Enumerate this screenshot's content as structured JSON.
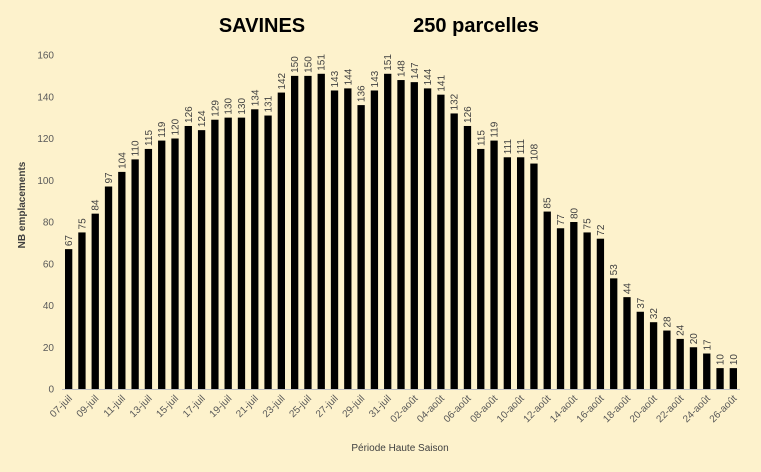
{
  "chart_data": {
    "type": "bar",
    "title_left": "SAVINES",
    "title_right": "250 parcelles",
    "xlabel": "Période Haute Saison",
    "ylabel": "NB emplacements",
    "ylim": [
      0,
      160
    ],
    "yticks": [
      0,
      20,
      40,
      60,
      80,
      100,
      120,
      140,
      160
    ],
    "grid": false,
    "bar_color": "#000000",
    "categories": [
      "07-juil",
      "08-juil",
      "09-juil",
      "10-juil",
      "11-juil",
      "12-juil",
      "13-juil",
      "14-juil",
      "15-juil",
      "16-juil",
      "17-juil",
      "18-juil",
      "19-juil",
      "20-juil",
      "21-juil",
      "22-juil",
      "23-juil",
      "24-juil",
      "25-juil",
      "26-juil",
      "27-juil",
      "28-juil",
      "29-juil",
      "30-juil",
      "31-juil",
      "01-août",
      "02-août",
      "03-août",
      "04-août",
      "05-août",
      "06-août",
      "07-août",
      "08-août",
      "09-août",
      "10-août",
      "11-août",
      "12-août",
      "13-août",
      "14-août",
      "15-août",
      "16-août",
      "17-août",
      "18-août",
      "19-août",
      "20-août",
      "21-août",
      "22-août",
      "23-août",
      "24-août",
      "25-août",
      "26-août"
    ],
    "x_tick_labels": [
      "07-juil",
      "09-juil",
      "11-juil",
      "13-juil",
      "15-juil",
      "17-juil",
      "19-juil",
      "21-juil",
      "23-juil",
      "25-juil",
      "27-juil",
      "29-juil",
      "31-juil",
      "02-août",
      "04-août",
      "06-août",
      "08-août",
      "10-août",
      "12-août",
      "14-août",
      "16-août",
      "18-août",
      "20-août",
      "22-août",
      "24-août",
      "26-août"
    ],
    "values": [
      67,
      75,
      84,
      97,
      104,
      110,
      115,
      119,
      120,
      126,
      124,
      129,
      130,
      130,
      134,
      131,
      142,
      150,
      150,
      151,
      143,
      144,
      136,
      143,
      151,
      148,
      147,
      144,
      141,
      132,
      126,
      115,
      119,
      111,
      111,
      108,
      85,
      77,
      80,
      75,
      72,
      53,
      44,
      37,
      32,
      28,
      24,
      20,
      17,
      10,
      10
    ]
  }
}
